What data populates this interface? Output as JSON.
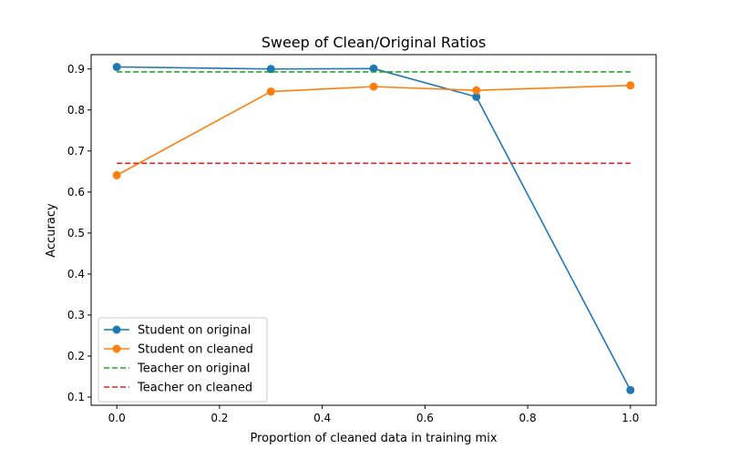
{
  "chart_data": {
    "type": "line",
    "title": "Sweep of Clean/Original Ratios",
    "xlabel": "Proportion of cleaned data in training mix",
    "ylabel": "Accuracy",
    "xlim": [
      -0.05,
      1.05
    ],
    "ylim": [
      0.08,
      0.935
    ],
    "xticks": [
      0.0,
      0.2,
      0.4,
      0.6,
      0.8,
      1.0
    ],
    "xtick_labels": [
      "0.0",
      "0.2",
      "0.4",
      "0.6",
      "0.8",
      "1.0"
    ],
    "yticks": [
      0.1,
      0.2,
      0.3,
      0.4,
      0.5,
      0.6,
      0.7,
      0.8,
      0.9
    ],
    "ytick_labels": [
      "0.1",
      "0.2",
      "0.3",
      "0.4",
      "0.5",
      "0.6",
      "0.7",
      "0.8",
      "0.9"
    ],
    "grid": false,
    "legend_position": "lower-left",
    "series": [
      {
        "name": "Student on original",
        "color": "#1f77b4",
        "style": "solid",
        "marker": "circle",
        "x": [
          0.0,
          0.3,
          0.5,
          0.7,
          1.0
        ],
        "y": [
          0.905,
          0.9,
          0.901,
          0.832,
          0.117
        ]
      },
      {
        "name": "Student on cleaned",
        "color": "#ff7f0e",
        "style": "solid",
        "marker": "circle",
        "x": [
          0.0,
          0.3,
          0.5,
          0.7,
          1.0
        ],
        "y": [
          0.641,
          0.845,
          0.857,
          0.848,
          0.86
        ]
      },
      {
        "name": "Teacher on original",
        "color": "#2ca02c",
        "style": "dashed",
        "marker": "none",
        "x": [
          0.0,
          1.0
        ],
        "y": [
          0.893,
          0.893
        ]
      },
      {
        "name": "Teacher on cleaned",
        "color": "#d62728",
        "style": "dashed",
        "marker": "none",
        "x": [
          0.0,
          1.0
        ],
        "y": [
          0.67,
          0.67
        ]
      }
    ]
  }
}
